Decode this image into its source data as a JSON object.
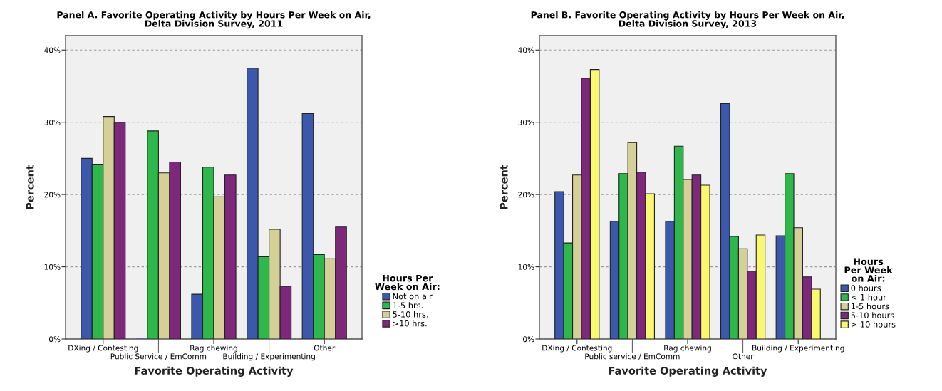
{
  "chart_data": [
    {
      "type": "bar",
      "title": "Panel A. Favorite Operating Activity by Hours Per Week on Air,\nDelta Division Survey, 2011",
      "xlabel": "Favorite Operating Activity",
      "ylabel": "Percent",
      "legend_title": "Hours Per\nWeek on Air:",
      "categories": [
        "DXing / Contesting",
        "Public Service / EmComm",
        "Rag chewing",
        "Building / Experimenting",
        "Other"
      ],
      "series": [
        {
          "name": "Not on air",
          "color": "#3c58ad",
          "values": [
            25.0,
            0,
            6.2,
            37.5,
            31.2
          ]
        },
        {
          "name": "1-5 hrs.",
          "color": "#2eb74a",
          "values": [
            24.2,
            28.8,
            23.8,
            11.4,
            11.7
          ]
        },
        {
          "name": "5-10 hrs.",
          "color": "#d5d098",
          "values": [
            30.8,
            23.0,
            19.7,
            15.2,
            11.1
          ]
        },
        {
          "name": ">10 hrs.",
          "color": "#7e287c",
          "values": [
            30.0,
            24.5,
            22.7,
            7.3,
            15.5
          ]
        }
      ],
      "ylim": [
        0,
        42
      ],
      "yticks": [
        {
          "value": 0,
          "label": "0%"
        },
        {
          "value": 10,
          "label": "10%"
        },
        {
          "value": 20,
          "label": "20%"
        },
        {
          "value": 30,
          "label": "30%"
        },
        {
          "value": 40,
          "label": "40%"
        }
      ],
      "grid": "y",
      "legend": "bottom right"
    },
    {
      "type": "bar",
      "title": "Panel B. Favorite Operating Activity by Hours Per Week on Air,\nDelta Division Survey, 2013",
      "xlabel": "Favorite Operating Activity",
      "ylabel": "Percent",
      "legend_title": "Hours\nPer Week\non Air:",
      "categories": [
        "DXing / Contesting",
        "Public service / EmComm",
        "Rag chewing",
        "Other",
        "Building / Experimenting"
      ],
      "series": [
        {
          "name": "0 hours",
          "color": "#3c58ad",
          "values": [
            20.4,
            16.3,
            16.3,
            32.6,
            14.3
          ]
        },
        {
          "name": "< 1 hour",
          "color": "#2eb74a",
          "values": [
            13.3,
            22.9,
            26.7,
            14.2,
            22.9
          ]
        },
        {
          "name": "1-5 hours",
          "color": "#d5d098",
          "values": [
            22.7,
            27.2,
            22.1,
            12.5,
            15.4
          ]
        },
        {
          "name": "5-10 hours",
          "color": "#7e287c",
          "values": [
            36.1,
            23.1,
            22.7,
            9.4,
            8.6
          ]
        },
        {
          "name": "> 10 hours",
          "color": "#faf870",
          "values": [
            37.3,
            20.1,
            21.3,
            14.4,
            6.9
          ]
        }
      ],
      "ylim": [
        0,
        42
      ],
      "yticks": [
        {
          "value": 0,
          "label": "0%"
        },
        {
          "value": 10,
          "label": "10%"
        },
        {
          "value": 20,
          "label": "20%"
        },
        {
          "value": 30,
          "label": "30%"
        },
        {
          "value": 40,
          "label": "40%"
        }
      ],
      "grid": "y",
      "legend": "bottom right"
    }
  ]
}
